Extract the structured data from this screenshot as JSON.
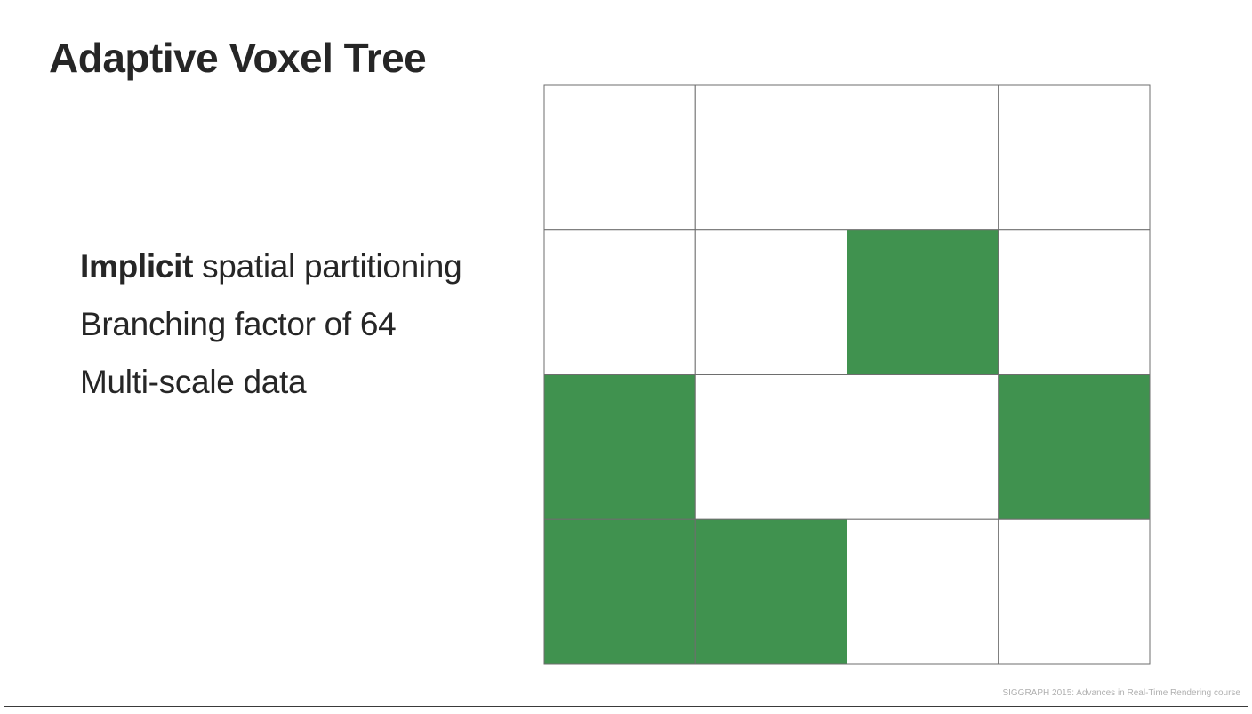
{
  "slide": {
    "title": "Adaptive Voxel Tree",
    "bullets": [
      {
        "emphasis": "Implicit",
        "text": " spatial partitioning"
      },
      {
        "emphasis": "",
        "text": "Branching factor of 64"
      },
      {
        "emphasis": "",
        "text": "Multi-scale data"
      }
    ],
    "footer": "SIGGRAPH 2015: Advances in Real-Time Rendering course"
  },
  "grid": {
    "rows": 4,
    "cols": 4,
    "filled_color": "#40924f",
    "empty_color": "#ffffff",
    "line_color": "#6e6e6e",
    "cells": [
      [
        0,
        0,
        0,
        0
      ],
      [
        0,
        0,
        1,
        0
      ],
      [
        1,
        0,
        0,
        1
      ],
      [
        1,
        1,
        0,
        0
      ]
    ]
  }
}
